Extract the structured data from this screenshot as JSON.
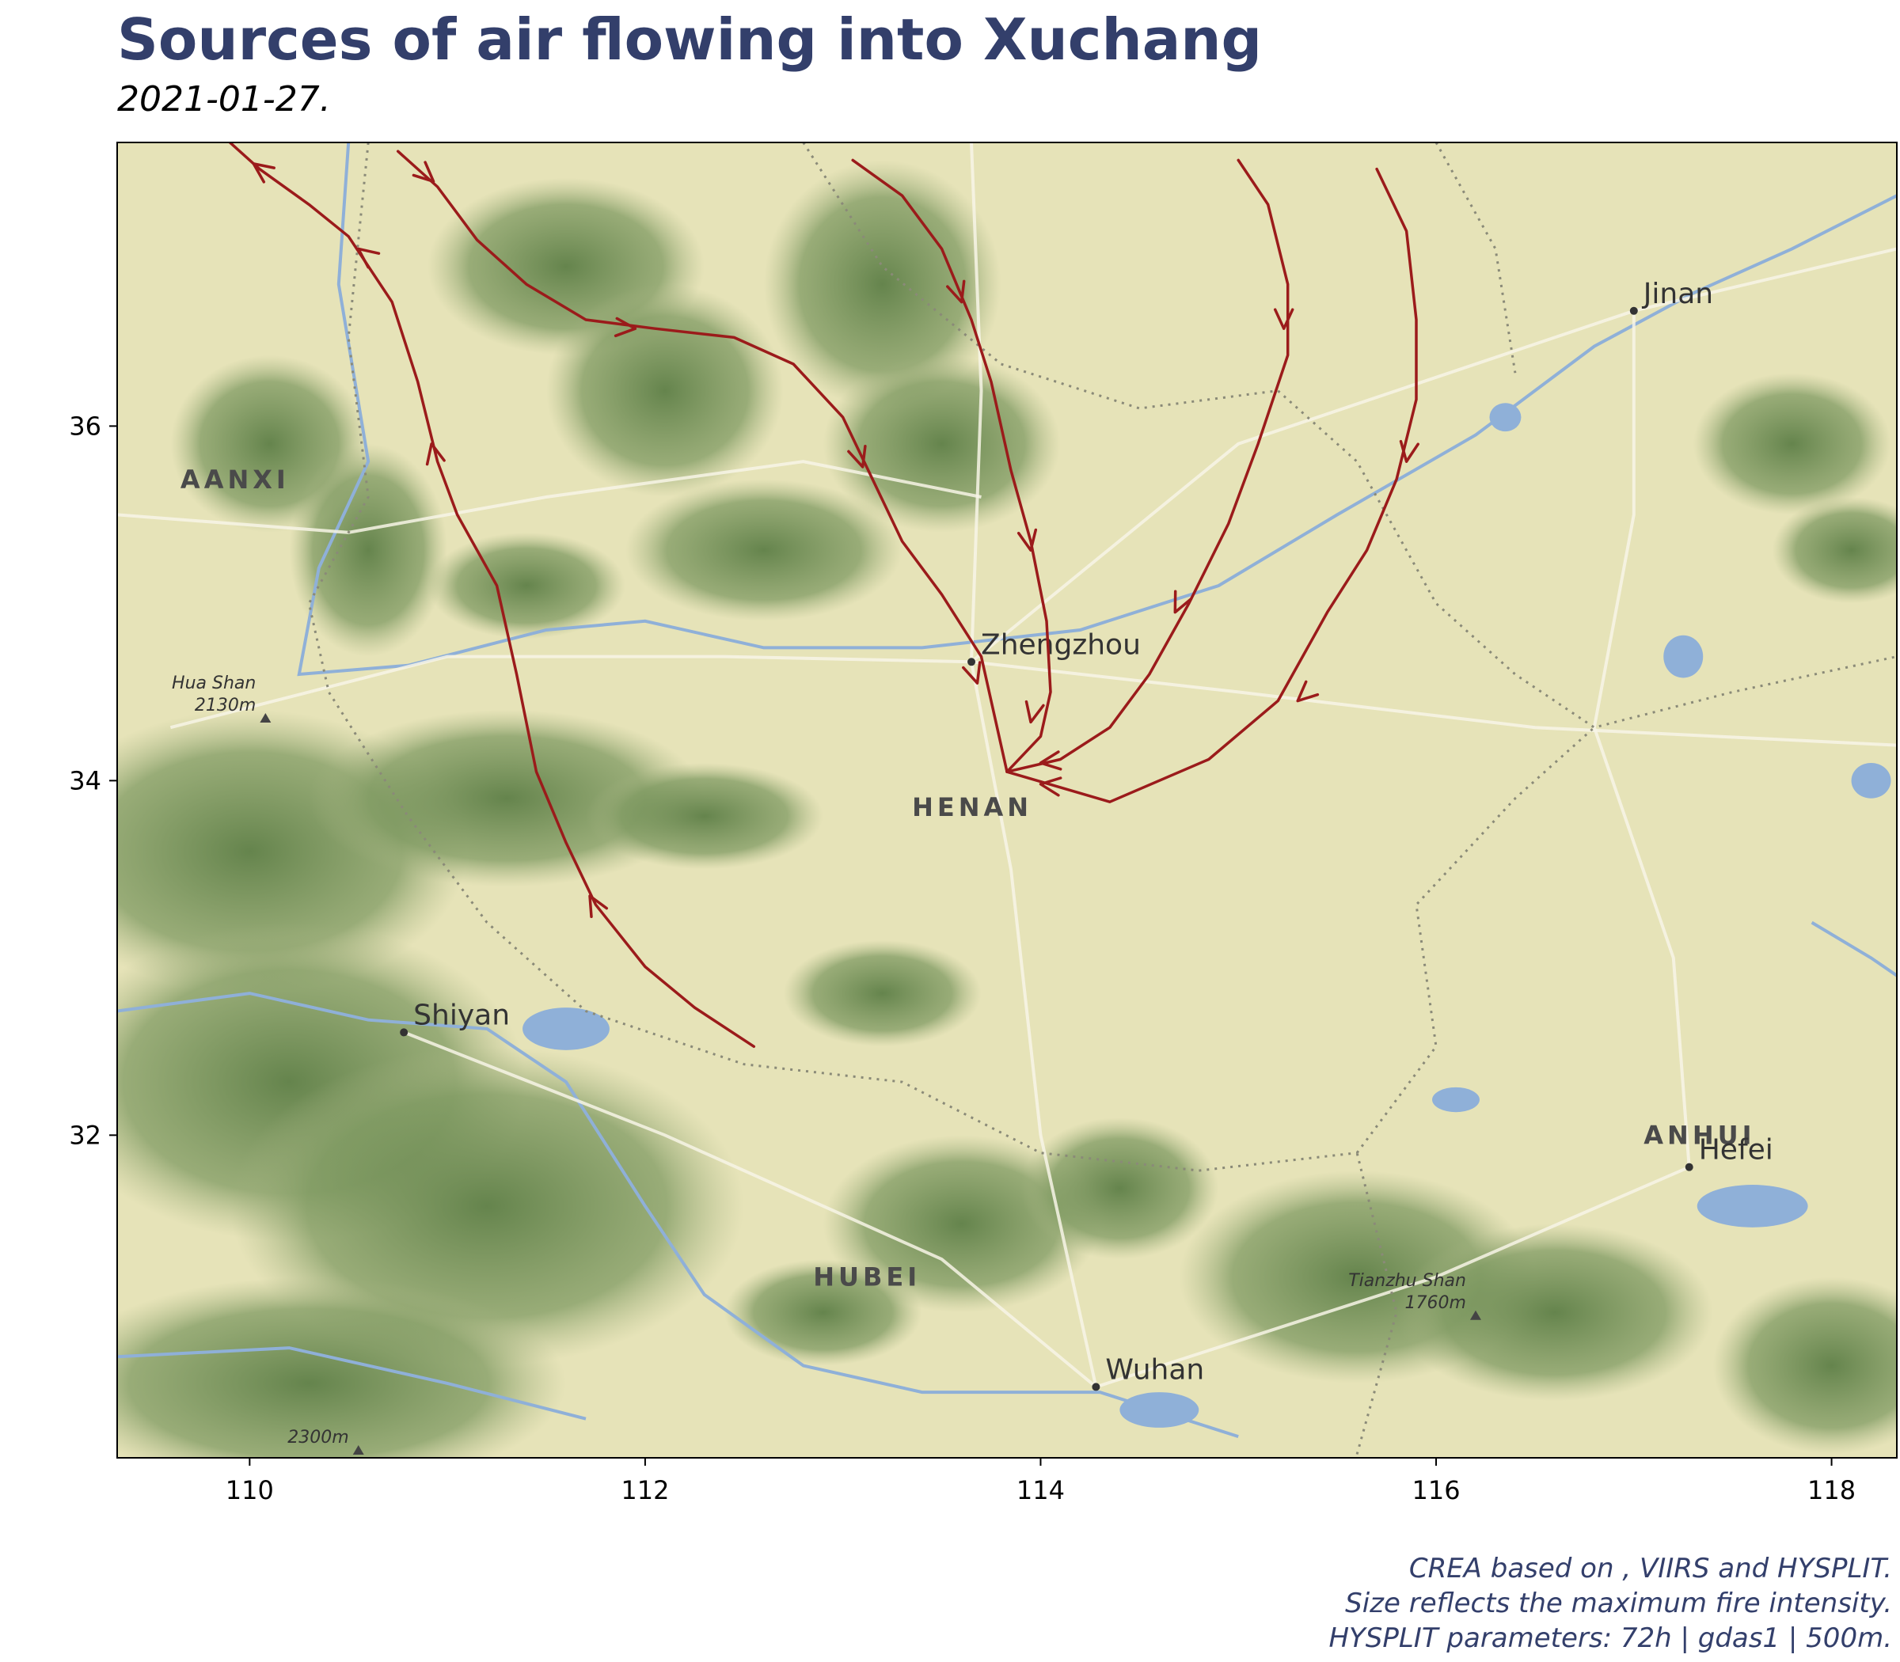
{
  "header": {
    "title": "Sources of air flowing into Xuchang",
    "subtitle": "2021-01-27."
  },
  "caption": {
    "line1": "CREA based on , VIIRS and HYSPLIT.",
    "line2": "Size reflects the maximum fire intensity.",
    "line3": "HYSPLIT parameters: 72h | gdas1 | 500m."
  },
  "map": {
    "lon_range": [
      109.33,
      118.33
    ],
    "lat_range": [
      30.18,
      37.6
    ],
    "x_ticks": [
      110,
      112,
      114,
      116,
      118
    ],
    "y_ticks": [
      32,
      34,
      36
    ],
    "x_tick_labels": [
      "110",
      "112",
      "114",
      "116",
      "118"
    ],
    "y_tick_labels": [
      "32",
      "34",
      "36"
    ],
    "trajectory_color": "#9b1b1b",
    "water_color": "#8fb0d8",
    "land_color": "#e6e3b8",
    "forest_color": "#6f8e55",
    "receptor": {
      "name": "Xuchang",
      "lon": 113.83,
      "lat": 34.05
    },
    "region_labels": [
      {
        "text": "AANXI",
        "lon": 109.65,
        "lat": 35.65
      },
      {
        "text": "HENAN",
        "lon": 113.35,
        "lat": 33.8
      },
      {
        "text": "HUBEI",
        "lon": 112.85,
        "lat": 31.15
      },
      {
        "text": "ANHUI",
        "lon": 117.05,
        "lat": 31.95
      }
    ],
    "cities": [
      {
        "name": "Zhengzhou",
        "lon": 113.65,
        "lat": 34.67
      },
      {
        "name": "Jinan",
        "lon": 117.0,
        "lat": 36.65
      },
      {
        "name": "Shiyan",
        "lon": 110.78,
        "lat": 32.58
      },
      {
        "name": "Wuhan",
        "lon": 114.28,
        "lat": 30.58
      },
      {
        "name": "Hefei",
        "lon": 117.28,
        "lat": 31.82
      }
    ],
    "peaks": [
      {
        "name": "Hua Shan",
        "elev": "2130m",
        "lon": 110.08,
        "lat": 34.35
      },
      {
        "name": "Tianzhu Shan",
        "elev": "1760m",
        "lon": 116.2,
        "lat": 30.98
      },
      {
        "name": "",
        "elev": "2300m",
        "lon": 110.55,
        "lat": 30.22
      }
    ],
    "trajectories": [
      [
        [
          109.9,
          37.6
        ],
        [
          110.05,
          37.45
        ],
        [
          110.3,
          37.25
        ],
        [
          110.5,
          37.07
        ],
        [
          110.72,
          36.7
        ],
        [
          110.85,
          36.25
        ],
        [
          110.95,
          35.8
        ],
        [
          111.05,
          35.5
        ],
        [
          111.25,
          35.1
        ],
        [
          111.35,
          34.6
        ],
        [
          111.45,
          34.05
        ],
        [
          111.6,
          33.65
        ],
        [
          111.75,
          33.3
        ],
        [
          112.0,
          32.95
        ],
        [
          112.25,
          32.72
        ],
        [
          112.55,
          32.5
        ]
      ],
      [
        [
          110.75,
          37.55
        ],
        [
          110.95,
          37.35
        ],
        [
          111.15,
          37.05
        ],
        [
          111.4,
          36.8
        ],
        [
          111.7,
          36.6
        ],
        [
          112.05,
          36.55
        ],
        [
          112.45,
          36.5
        ],
        [
          112.75,
          36.35
        ],
        [
          113.0,
          36.05
        ],
        [
          113.15,
          35.7
        ],
        [
          113.3,
          35.35
        ],
        [
          113.5,
          35.05
        ],
        [
          113.7,
          34.7
        ],
        [
          113.83,
          34.05
        ]
      ],
      [
        [
          113.05,
          37.5
        ],
        [
          113.3,
          37.3
        ],
        [
          113.5,
          37.0
        ],
        [
          113.65,
          36.6
        ],
        [
          113.75,
          36.25
        ],
        [
          113.85,
          35.75
        ],
        [
          113.95,
          35.35
        ],
        [
          114.03,
          34.9
        ],
        [
          114.05,
          34.5
        ],
        [
          114.0,
          34.25
        ],
        [
          113.83,
          34.05
        ]
      ],
      [
        [
          115.0,
          37.5
        ],
        [
          115.15,
          37.25
        ],
        [
          115.25,
          36.8
        ],
        [
          115.25,
          36.4
        ],
        [
          115.1,
          35.9
        ],
        [
          114.95,
          35.45
        ],
        [
          114.75,
          35.0
        ],
        [
          114.55,
          34.6
        ],
        [
          114.35,
          34.3
        ],
        [
          114.1,
          34.12
        ],
        [
          113.83,
          34.05
        ]
      ],
      [
        [
          115.7,
          37.45
        ],
        [
          115.85,
          37.1
        ],
        [
          115.9,
          36.6
        ],
        [
          115.9,
          36.15
        ],
        [
          115.8,
          35.7
        ],
        [
          115.65,
          35.3
        ],
        [
          115.45,
          34.95
        ],
        [
          115.2,
          34.45
        ],
        [
          114.85,
          34.12
        ],
        [
          114.35,
          33.88
        ],
        [
          113.83,
          34.05
        ]
      ]
    ],
    "arrows": [
      {
        "traj": 0,
        "at": [
          110.02,
          37.48
        ],
        "dir": [
          -0.16,
          0.13
        ]
      },
      {
        "traj": 0,
        "at": [
          110.55,
          37.0
        ],
        "dir": [
          -0.2,
          0.17
        ]
      },
      {
        "traj": 0,
        "at": [
          110.92,
          35.9
        ],
        "dir": [
          -0.04,
          0.2
        ]
      },
      {
        "traj": 0,
        "at": [
          111.72,
          33.35
        ],
        "dir": [
          -0.15,
          0.3
        ]
      },
      {
        "traj": 1,
        "at": [
          110.93,
          37.38
        ],
        "dir": [
          0.2,
          -0.2
        ]
      },
      {
        "traj": 1,
        "at": [
          111.95,
          36.55
        ],
        "dir": [
          0.35,
          -0.03
        ]
      },
      {
        "traj": 1,
        "at": [
          113.1,
          35.77
        ],
        "dir": [
          0.1,
          -0.35
        ]
      },
      {
        "traj": 1,
        "at": [
          113.68,
          34.55
        ],
        "dir": [
          0.1,
          -0.35
        ]
      },
      {
        "traj": 2,
        "at": [
          113.6,
          36.7
        ],
        "dir": [
          0.1,
          -0.35
        ]
      },
      {
        "traj": 2,
        "at": [
          113.95,
          35.3
        ],
        "dir": [
          0.06,
          -0.35
        ]
      },
      {
        "traj": 2,
        "at": [
          113.95,
          34.33
        ],
        "dir": [
          -0.05,
          -0.25
        ]
      },
      {
        "traj": 3,
        "at": [
          115.23,
          36.55
        ],
        "dir": [
          0.0,
          -0.3
        ]
      },
      {
        "traj": 3,
        "at": [
          114.68,
          34.95
        ],
        "dir": [
          -0.15,
          -0.35
        ]
      },
      {
        "traj": 3,
        "at": [
          114.0,
          34.1
        ],
        "dir": [
          -0.35,
          -0.05
        ]
      },
      {
        "traj": 4,
        "at": [
          115.85,
          35.8
        ],
        "dir": [
          -0.05,
          -0.35
        ]
      },
      {
        "traj": 4,
        "at": [
          115.3,
          34.45
        ],
        "dir": [
          -0.3,
          -0.3
        ]
      },
      {
        "traj": 4,
        "at": [
          114.0,
          33.98
        ],
        "dir": [
          -0.35,
          0.05
        ]
      }
    ]
  }
}
